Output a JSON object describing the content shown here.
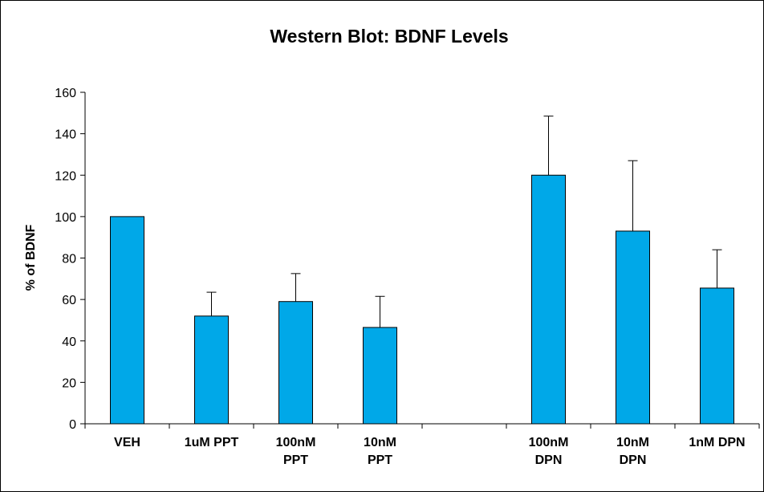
{
  "chart_data": {
    "type": "bar",
    "title": "Western Blot: BDNF Levels",
    "xlabel": "",
    "ylabel": "% of BDNF",
    "ylim": [
      0,
      160
    ],
    "yticks": [
      0,
      20,
      40,
      60,
      80,
      100,
      120,
      140,
      160
    ],
    "categories": [
      [
        "VEH"
      ],
      [
        "1uM PPT"
      ],
      [
        "100nM",
        "PPT"
      ],
      [
        "10nM",
        "PPT"
      ],
      [
        ""
      ],
      [
        "100nM",
        "DPN"
      ],
      [
        "10nM",
        "DPN"
      ],
      [
        "1nM DPN"
      ]
    ],
    "values": [
      100,
      52,
      59,
      46.5,
      null,
      120,
      93,
      65.5
    ],
    "error_upper": [
      0,
      11.5,
      13.5,
      15,
      null,
      28.5,
      34,
      18.5
    ],
    "grid": false,
    "bar_color": "#00a8e8",
    "bar_edge_color": "#000000"
  }
}
